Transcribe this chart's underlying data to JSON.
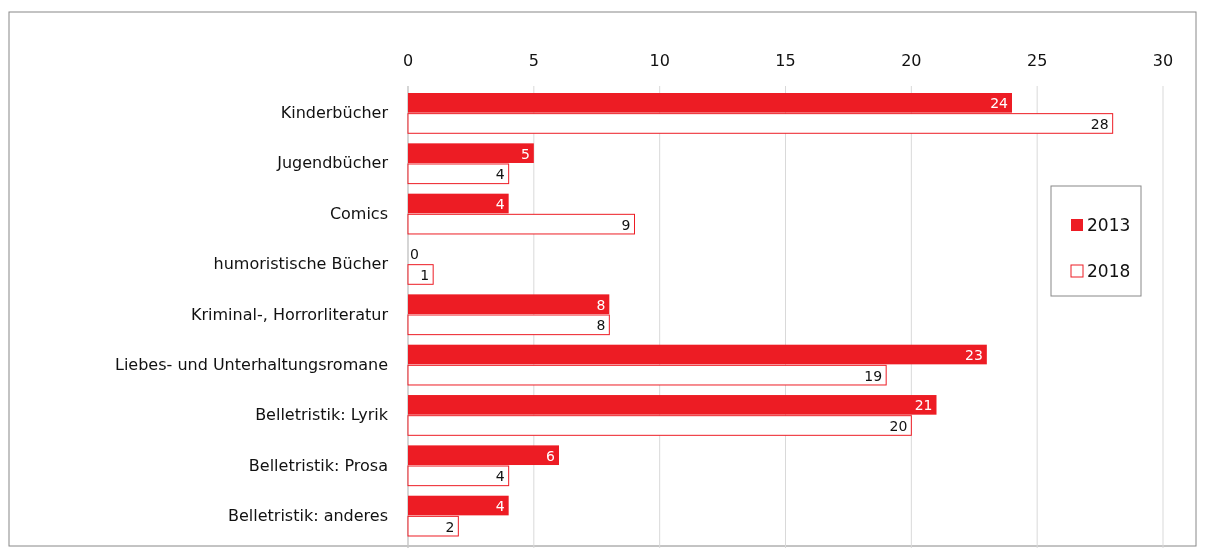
{
  "chart_data": {
    "type": "bar",
    "orientation": "horizontal",
    "categories": [
      "Kinderbücher",
      "Jugendbücher",
      "Comics",
      "humoristische Bücher",
      "Kriminal-, Horrorliteratur",
      "Liebes- und Unterhaltungsromane",
      "Belletristik: Lyrik",
      "Belletristik: Prosa",
      "Belletristik: anderes"
    ],
    "series": [
      {
        "name": "2013",
        "color": "#ed1c24",
        "values": [
          24,
          5,
          4,
          0,
          8,
          23,
          21,
          6,
          4
        ]
      },
      {
        "name": "2018",
        "color": "#ffffff",
        "values": [
          28,
          4,
          9,
          1,
          8,
          19,
          20,
          4,
          2
        ]
      }
    ],
    "xlim": [
      0,
      30
    ],
    "xticks": [
      0,
      5,
      10,
      15,
      20,
      25,
      30
    ],
    "grid": "x",
    "legend": "right",
    "data_labels": true
  }
}
